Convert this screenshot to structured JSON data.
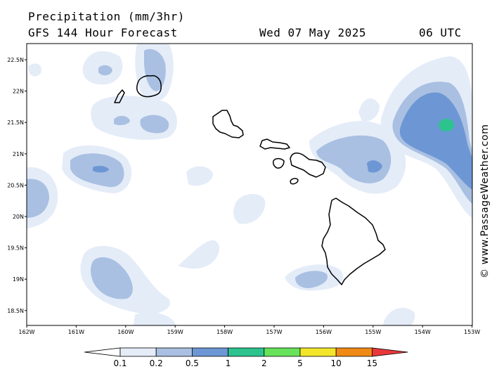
{
  "header": {
    "title": "Precipitation (mm/3hr)",
    "model": "GFS 144 Hour Forecast",
    "date": "Wed 07 May 2025",
    "time": "06 UTC"
  },
  "axes": {
    "lat_labels": [
      "22.5N",
      "22N",
      "21.5N",
      "21N",
      "20.5N",
      "20N",
      "19.5N",
      "19N",
      "18.5N"
    ],
    "lon_labels": [
      "162W",
      "161W",
      "160W",
      "159W",
      "158W",
      "157W",
      "156W",
      "155W",
      "154W",
      "153W"
    ]
  },
  "colorbar": {
    "colors": [
      "#ffffff",
      "#e4ecf8",
      "#a9c0e2",
      "#6d97d4",
      "#2cc38f",
      "#66e35a",
      "#f3e52a",
      "#f08a14",
      "#e8383a"
    ],
    "labels": [
      "0.1",
      "0.2",
      "0.5",
      "1",
      "2",
      "5",
      "10",
      "15"
    ]
  },
  "copyright": "© www.PassageWeather.com",
  "palette": {
    "land_outline": "#000000",
    "very_light": "#e4ecf8",
    "light": "#a9c0e2",
    "medium": "#6d97d4",
    "green": "#2cc38f"
  }
}
